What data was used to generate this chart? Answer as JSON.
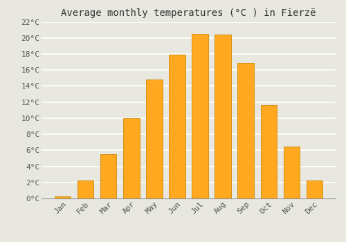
{
  "title": "Average monthly temperatures (°C ) in Fierzë",
  "months": [
    "Jan",
    "Feb",
    "Mar",
    "Apr",
    "May",
    "Jun",
    "Jul",
    "Aug",
    "Sep",
    "Oct",
    "Nov",
    "Dec"
  ],
  "values": [
    0.3,
    2.2,
    5.5,
    10.0,
    14.8,
    17.9,
    20.5,
    20.4,
    16.9,
    11.6,
    6.5,
    2.2
  ],
  "bar_color": "#FFA820",
  "bar_edge_color": "#CC8800",
  "ylim": [
    0,
    22
  ],
  "yticks": [
    0,
    2,
    4,
    6,
    8,
    10,
    12,
    14,
    16,
    18,
    20,
    22
  ],
  "ytick_labels": [
    "0°C",
    "2°C",
    "4°C",
    "6°C",
    "8°C",
    "10°C",
    "12°C",
    "14°C",
    "16°C",
    "18°C",
    "20°C",
    "22°C"
  ],
  "background_color": "#E8E8E0",
  "plot_bg_color": "#E8E8E0",
  "grid_color": "#FFFFFF",
  "title_fontsize": 10,
  "tick_fontsize": 8
}
